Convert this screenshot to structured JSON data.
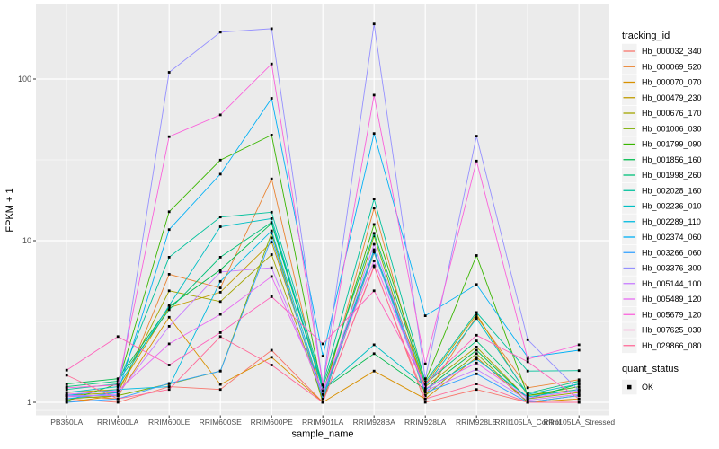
{
  "figure": {
    "panel_bg": "#EBEBEB",
    "grid_color": "#FFFFFF",
    "legend_key_bg": "#F2F2F2",
    "tick_text_color": "#4D4D4D",
    "title_text_color": "#000000",
    "point_color": "#000000"
  },
  "chart_data": {
    "type": "line",
    "title": "",
    "xlabel": "sample_name",
    "ylabel": "FPKM + 1",
    "y_scale": "log10",
    "y_ticks": [
      "1",
      "10",
      "100"
    ],
    "y_tick_values": [
      1,
      10,
      100
    ],
    "ylim_log": [
      0.85,
      285
    ],
    "grid": "on",
    "point_marker": "filled-square",
    "categories": [
      "PB350LA",
      "RRIM600LA",
      "RRIM600LE",
      "RRIM600SE",
      "RRIM600PE",
      "RRIM901LA",
      "RRIM928BA",
      "RRIM928LA",
      "RRIM928LE",
      "RRII105LA_Control",
      "RRII105LA_Stressed"
    ],
    "legend": {
      "title": "tracking_id",
      "position": "right"
    },
    "legend2": {
      "title": "quant_status",
      "items": [
        {
          "label": "OK",
          "marker": "square",
          "color": "#000000"
        }
      ]
    },
    "series": [
      {
        "name": "Hb_000032_340",
        "color": "#F8766D",
        "values": [
          1.05,
          1.0,
          1.25,
          1.2,
          2.1,
          1.0,
          7.0,
          1.0,
          1.2,
          1.0,
          1.0
        ]
      },
      {
        "name": "Hb_000069_520",
        "color": "#EA8331",
        "values": [
          1.1,
          1.05,
          6.2,
          5.1,
          24.1,
          1.05,
          15.9,
          1.1,
          3.4,
          1.23,
          1.38
        ]
      },
      {
        "name": "Hb_000070_070",
        "color": "#D89000",
        "values": [
          1.0,
          1.1,
          3.36,
          1.29,
          1.9,
          1.0,
          1.56,
          1.05,
          1.9,
          1.0,
          1.05
        ]
      },
      {
        "name": "Hb_000479_230",
        "color": "#C09B00",
        "values": [
          1.15,
          1.2,
          3.85,
          4.8,
          9.8,
          1.1,
          8.6,
          1.3,
          3.5,
          1.1,
          1.2
        ]
      },
      {
        "name": "Hb_000676_170",
        "color": "#A3A500",
        "values": [
          1.1,
          1.15,
          4.9,
          4.2,
          8.2,
          1.05,
          8.4,
          1.25,
          2.2,
          1.05,
          1.15
        ]
      },
      {
        "name": "Hb_001006_030",
        "color": "#7CAE00",
        "values": [
          1.05,
          1.1,
          1.3,
          1.56,
          11.1,
          1.0,
          10.7,
          1.1,
          2.0,
          1.0,
          1.1
        ]
      },
      {
        "name": "Hb_001799_090",
        "color": "#39B600",
        "values": [
          1.02,
          1.3,
          15.1,
          31.5,
          45.0,
          1.15,
          12.6,
          1.35,
          8.1,
          1.1,
          1.25
        ]
      },
      {
        "name": "Hb_001856_160",
        "color": "#00BB4E",
        "values": [
          1.3,
          1.4,
          3.9,
          6.6,
          12.8,
          1.2,
          2.0,
          1.2,
          2.1,
          1.05,
          1.3
        ]
      },
      {
        "name": "Hb_001998_260",
        "color": "#00C079",
        "values": [
          1.25,
          1.35,
          3.74,
          7.9,
          13.0,
          1.25,
          11.1,
          1.3,
          2.4,
          1.14,
          1.35
        ]
      },
      {
        "name": "Hb_002028_160",
        "color": "#00C19C",
        "values": [
          1.2,
          1.3,
          7.9,
          14.0,
          15.0,
          1.29,
          18.1,
          1.34,
          3.6,
          1.56,
          1.57
        ]
      },
      {
        "name": "Hb_002236_010",
        "color": "#00BFC4",
        "values": [
          1.15,
          1.25,
          3.97,
          12.2,
          13.7,
          1.2,
          2.27,
          1.26,
          3.3,
          1.12,
          1.3
        ]
      },
      {
        "name": "Hb_002289_110",
        "color": "#00BAE0",
        "values": [
          1.1,
          1.2,
          1.25,
          5.6,
          11.5,
          1.1,
          8.8,
          1.2,
          1.85,
          1.08,
          1.2
        ]
      },
      {
        "name": "Hb_002374_060",
        "color": "#00B0F6",
        "values": [
          1.05,
          1.15,
          11.7,
          25.8,
          76.0,
          1.93,
          46.0,
          3.43,
          5.36,
          1.9,
          2.1
        ]
      },
      {
        "name": "Hb_003266_060",
        "color": "#35A2FF",
        "values": [
          1.0,
          1.05,
          1.31,
          1.56,
          10.4,
          1.05,
          8.5,
          1.15,
          1.5,
          1.0,
          1.1
        ]
      },
      {
        "name": "Hb_003376_300",
        "color": "#9590FF",
        "values": [
          1.1,
          1.1,
          110.0,
          195.0,
          205.0,
          1.3,
          219.0,
          1.4,
          44.3,
          2.44,
          1.18
        ]
      },
      {
        "name": "Hb_005144_100",
        "color": "#C77CFF",
        "values": [
          1.08,
          1.12,
          2.95,
          6.4,
          6.8,
          1.12,
          9.5,
          1.18,
          1.6,
          1.03,
          1.12
        ]
      },
      {
        "name": "Hb_005489_120",
        "color": "#E76BF3",
        "values": [
          1.12,
          1.18,
          2.3,
          3.5,
          6.0,
          1.18,
          7.5,
          1.22,
          1.75,
          1.06,
          1.18
        ]
      },
      {
        "name": "Hb_005679_120",
        "color": "#FA62DB",
        "values": [
          1.23,
          1.28,
          44.0,
          60.0,
          124.0,
          1.28,
          79.5,
          1.73,
          31.1,
          1.85,
          2.27
        ]
      },
      {
        "name": "Hb_007625_030",
        "color": "#FF62BC",
        "values": [
          1.58,
          2.55,
          1.7,
          2.7,
          4.5,
          2.3,
          4.9,
          1.3,
          2.6,
          1.78,
          1.05
        ]
      },
      {
        "name": "Hb_029866_080",
        "color": "#FF6A98",
        "values": [
          1.47,
          1.05,
          1.2,
          2.55,
          1.7,
          1.0,
          6.9,
          1.05,
          1.3,
          1.0,
          1.0
        ]
      }
    ]
  }
}
